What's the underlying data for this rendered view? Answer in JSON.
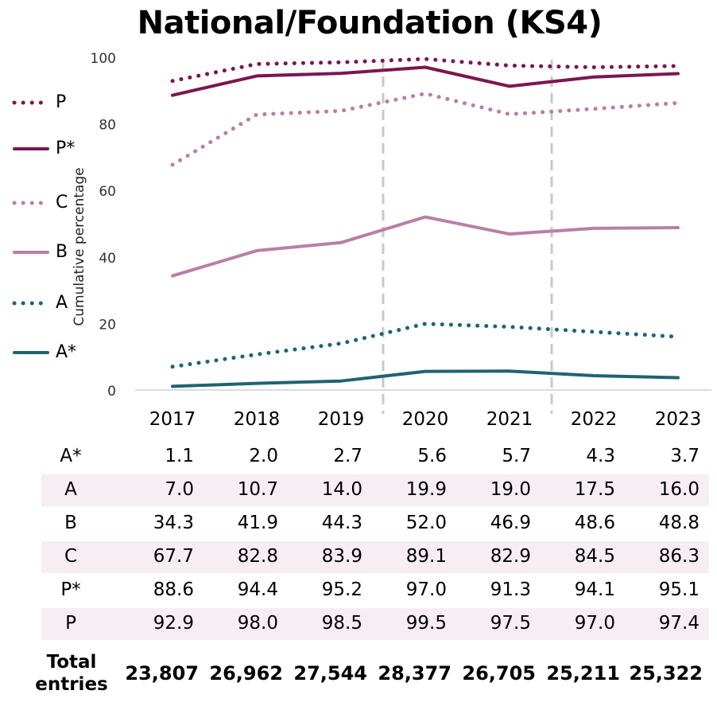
{
  "chart_data": {
    "type": "line",
    "title": "National/Foundation (KS4)",
    "ylabel": "Cumulative percentage",
    "ylim": [
      0,
      100
    ],
    "yticks": [
      0,
      20,
      40,
      60,
      80,
      100
    ],
    "x": [
      "2017",
      "2018",
      "2019",
      "2020",
      "2021",
      "2022",
      "2023"
    ],
    "dividers_after": [
      "2019",
      "2021"
    ],
    "series": [
      {
        "name": "P",
        "style": "dotted",
        "color": "#7b1650",
        "values": [
          92.9,
          98.0,
          98.5,
          99.5,
          97.5,
          97.0,
          97.4
        ]
      },
      {
        "name": "P*",
        "style": "solid",
        "color": "#7b1650",
        "values": [
          88.6,
          94.4,
          95.2,
          97.0,
          91.3,
          94.1,
          95.1
        ]
      },
      {
        "name": "C",
        "style": "dotted",
        "color": "#b97fa6",
        "values": [
          67.7,
          82.8,
          83.9,
          89.1,
          82.9,
          84.5,
          86.3
        ]
      },
      {
        "name": "B",
        "style": "solid",
        "color": "#b97fa6",
        "values": [
          34.3,
          41.9,
          44.3,
          52.0,
          46.9,
          48.6,
          48.8
        ]
      },
      {
        "name": "A",
        "style": "dotted",
        "color": "#1f6470",
        "values": [
          7.0,
          10.7,
          14.0,
          19.9,
          19.0,
          17.5,
          16.0
        ]
      },
      {
        "name": "A*",
        "style": "solid",
        "color": "#1f6470",
        "values": [
          1.1,
          2.0,
          2.7,
          5.6,
          5.7,
          4.3,
          3.7
        ]
      }
    ],
    "table": {
      "rows": [
        {
          "label": "A*",
          "values": [
            "1.1",
            "2.0",
            "2.7",
            "5.6",
            "5.7",
            "4.3",
            "3.7"
          ]
        },
        {
          "label": "A",
          "values": [
            "7.0",
            "10.7",
            "14.0",
            "19.9",
            "19.0",
            "17.5",
            "16.0"
          ]
        },
        {
          "label": "B",
          "values": [
            "34.3",
            "41.9",
            "44.3",
            "52.0",
            "46.9",
            "48.6",
            "48.8"
          ]
        },
        {
          "label": "C",
          "values": [
            "67.7",
            "82.8",
            "83.9",
            "89.1",
            "82.9",
            "84.5",
            "86.3"
          ]
        },
        {
          "label": "P*",
          "values": [
            "88.6",
            "94.4",
            "95.2",
            "97.0",
            "91.3",
            "94.1",
            "95.1"
          ]
        },
        {
          "label": "P",
          "values": [
            "92.9",
            "98.0",
            "98.5",
            "99.5",
            "97.5",
            "97.0",
            "97.4"
          ]
        }
      ],
      "total": {
        "label_line1": "Total",
        "label_line2": "entries",
        "values": [
          "23,807",
          "26,962",
          "27,544",
          "28,377",
          "26,705",
          "25,211",
          "25,322"
        ]
      }
    }
  }
}
